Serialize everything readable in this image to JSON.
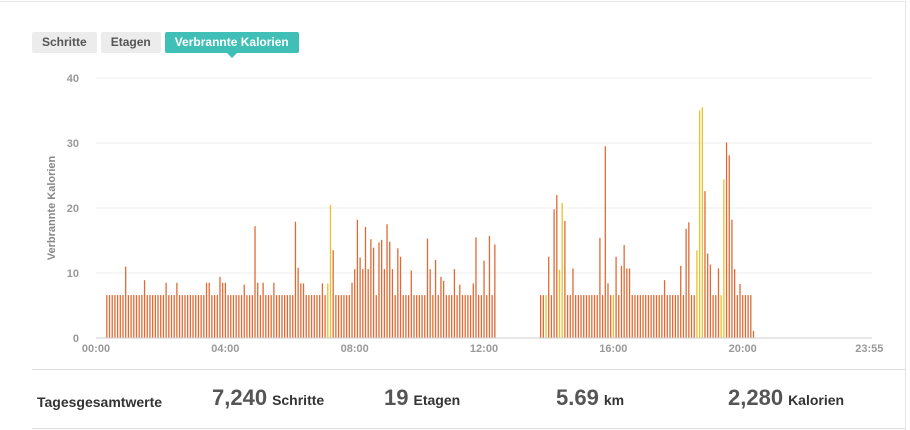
{
  "tabs": {
    "items": [
      {
        "label": "Schritte",
        "active": false
      },
      {
        "label": "Etagen",
        "active": false
      },
      {
        "label": "Verbrannte Kalorien",
        "active": true
      }
    ]
  },
  "colors": {
    "accent": "#3fbfb6",
    "bar_orange": "#e06a35",
    "bar_yellow": "#e8c22a",
    "grid": "#eeeeee"
  },
  "chart_data": {
    "type": "bar",
    "ylabel": "Verbrannte Kalorien",
    "ylim": [
      0,
      40
    ],
    "yticks": [
      0,
      10,
      20,
      30,
      40
    ],
    "x_tick_labels": [
      "00:00",
      "04:00",
      "08:00",
      "12:00",
      "16:00",
      "20:00",
      "23:55"
    ],
    "x_tick_minutes": [
      0,
      240,
      480,
      720,
      960,
      1200,
      1435
    ],
    "x_range_minutes": [
      0,
      1440
    ],
    "interval_minutes": 5,
    "grid": true,
    "series": [
      {
        "values": [
          6.6,
          6.6,
          6.6,
          6.6,
          6.6,
          6.6,
          6.6,
          11,
          6.6,
          6.6,
          6.6,
          6.6,
          6.6,
          6.6,
          8.9,
          6.6,
          6.6,
          6.6,
          6.6,
          6.6,
          6.6,
          6.6,
          8.5,
          6.6,
          6.6,
          6.6,
          8.5,
          6.6,
          6.6,
          6.6,
          6.6,
          6.6,
          6.6,
          6.6,
          6.6,
          6.6,
          6.6,
          8.5,
          8.5,
          6.6,
          6.6,
          6.6,
          9.4,
          8.5,
          8.5,
          6.6,
          6.6,
          6.6,
          6.6,
          6.6,
          6.6,
          8.2,
          6.6,
          6.6,
          6.6,
          17.2,
          8.5,
          6.6,
          8.5,
          6.6,
          6.6,
          6.6,
          8.5,
          6.6,
          6.6,
          6.6,
          6.6,
          6.6,
          6.6,
          6.6,
          17.9,
          10.8,
          8.4,
          8.4,
          6.6,
          6.6,
          6.6,
          6.6,
          6.6,
          6.6,
          8.4,
          6.6,
          8.4,
          20.5,
          13.5,
          6.6,
          6.6,
          6.6,
          6.6,
          6.6,
          6.6,
          8.5,
          10.6,
          18.2,
          12.4,
          10.6,
          17.1,
          10.6,
          15.2,
          13.9,
          6.6,
          14.7,
          15.1,
          10.6,
          17.5,
          14.8,
          10.6,
          6.6,
          13.8,
          12.5,
          6.6,
          6.6,
          6.6,
          10.4,
          6.6,
          6.6,
          6.6,
          6.6,
          6.6,
          15.3,
          10.6,
          6.6,
          12.0,
          6.6,
          9.4,
          8.8,
          6.6,
          6.6,
          6.6,
          10.6,
          6.6,
          8.2,
          6.6,
          6.6,
          6.6,
          6.6,
          8.4,
          15.5,
          6.6,
          6.6,
          11.9,
          6.6,
          15.7,
          6.6,
          14.4,
          null,
          null,
          null,
          null,
          null,
          null,
          null,
          null,
          null,
          null,
          null,
          null,
          null,
          null,
          null,
          null,
          6.6,
          6.6,
          6.6,
          12.5,
          6.6,
          19.8,
          22.0,
          10.5,
          20.8,
          18.0,
          6.6,
          6.6,
          10.7,
          6.6,
          6.6,
          6.6,
          6.6,
          6.6,
          6.6,
          6.6,
          6.6,
          6.6,
          15.4,
          6.6,
          29.5,
          8.4,
          6.6,
          6.6,
          12.5,
          6.6,
          11.1,
          14.3,
          10.7,
          10.7,
          6.6,
          6.6,
          6.6,
          6.6,
          6.6,
          6.6,
          6.6,
          6.6,
          6.6,
          6.6,
          6.6,
          6.6,
          8.9,
          6.6,
          6.6,
          6.6,
          6.6,
          6.6,
          11.1,
          6.6,
          16.8,
          17.8,
          6.6,
          6.6,
          13.5,
          35.0,
          35.5,
          22.6,
          13.0,
          11.3,
          6.6,
          6.6,
          10.7,
          6.6,
          24.4,
          30.1,
          28.1,
          18.2,
          10.6,
          6.6,
          8.3,
          6.6,
          6.6,
          6.6,
          6.6,
          1.1
        ],
        "colors_by_index_yellow": [
          82,
          83,
          160,
          163,
          168,
          169,
          188,
          219,
          220,
          221,
          228,
          229
        ]
      }
    ],
    "first_bar_minute": 20
  },
  "totals": {
    "label": "Tagesgesamtwerte",
    "items": [
      {
        "value": "7,240",
        "unit": "Schritte"
      },
      {
        "value": "19",
        "unit": "Etagen"
      },
      {
        "value": "5.69",
        "unit": "km"
      },
      {
        "value": "2,280",
        "unit": "Kalorien"
      }
    ]
  }
}
